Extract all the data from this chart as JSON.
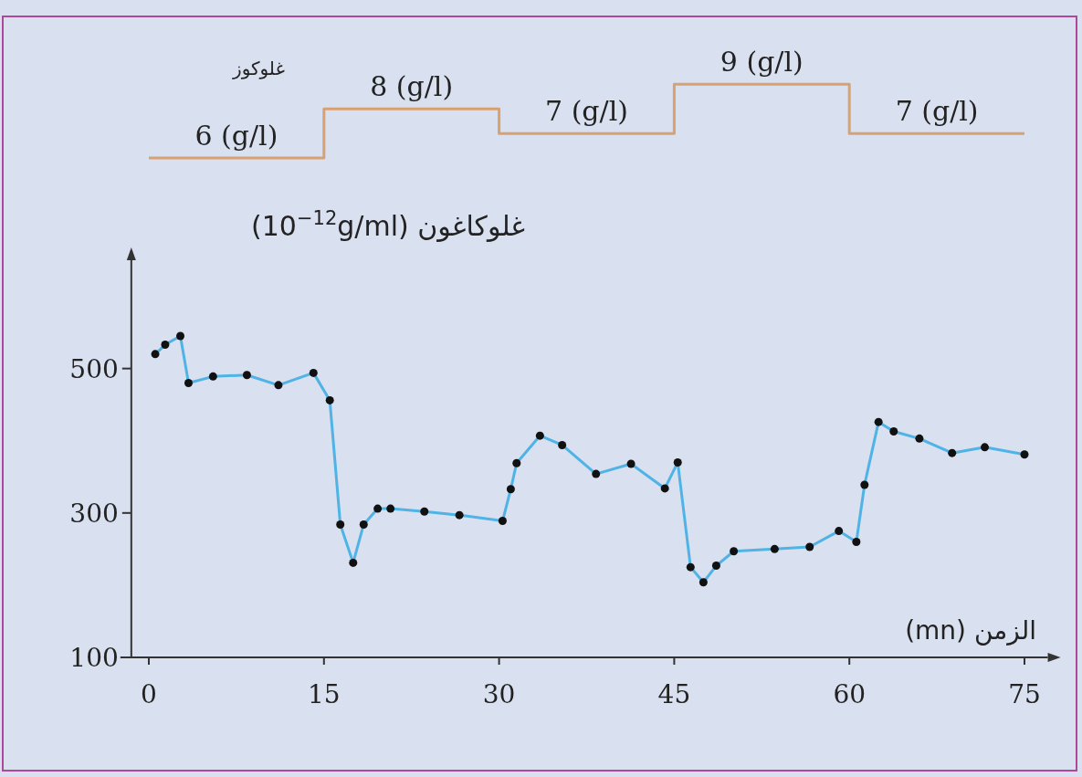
{
  "chart_data": [
    {
      "type": "step",
      "ylabel": "غلوكوز",
      "x": [
        0,
        15,
        30,
        45,
        60,
        75
      ],
      "values": [
        6,
        8,
        7,
        9,
        7,
        7
      ],
      "value_labels": [
        "6 (g/l)",
        "8 (g/l)",
        "7 (g/l)",
        "9 (g/l)",
        "7 (g/l)",
        null
      ],
      "color": "#d9a070",
      "tick_labels": false
    },
    {
      "type": "line",
      "ylabel": "غلوكاغون (10$^{−12}$g/ml)",
      "xlabel": "الزمن (mn)",
      "color": "#4fb3e6",
      "marker": "circle",
      "x": [
        0.55,
        1.4,
        2.7,
        3.4,
        5.5,
        8.4,
        11.1,
        14.1,
        15.5,
        16.4,
        17.5,
        18.4,
        19.6,
        20.7,
        23.6,
        26.6,
        30.3,
        31.0,
        31.5,
        33.5,
        35.4,
        38.3,
        41.3,
        44.2,
        45.3,
        46.4,
        47.5,
        48.6,
        50.1,
        53.6,
        56.6,
        59.1,
        60.6,
        61.3,
        62.5,
        63.8,
        66.0,
        68.8,
        71.6,
        75
      ],
      "values": [
        520,
        533,
        545,
        480,
        489,
        491,
        477,
        494,
        456,
        284,
        231,
        284,
        306,
        306,
        302,
        297,
        289,
        333,
        369,
        407,
        394,
        354,
        368,
        334,
        370,
        225,
        204,
        227,
        247,
        250,
        253,
        275,
        260,
        339,
        426,
        413,
        403,
        383,
        391,
        381
      ],
      "xlim": [
        -1.5,
        77
      ],
      "ylim": [
        100,
        650
      ],
      "xticks": [
        0,
        15,
        30,
        45,
        60,
        75
      ],
      "yticks": [
        100,
        300,
        500
      ]
    }
  ]
}
